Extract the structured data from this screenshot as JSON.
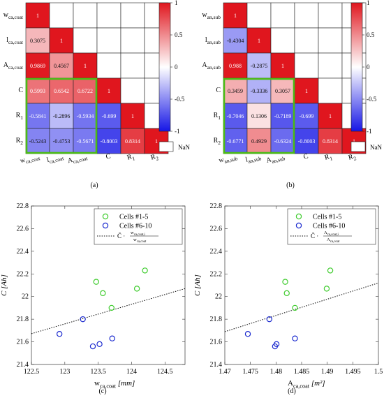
{
  "panel_labels": [
    "(a)",
    "(b)",
    "(c)",
    "(d)"
  ],
  "legend_nan": "NaN",
  "chart_data": [
    {
      "type": "heatmap",
      "panel": "(a)",
      "row_labels": [
        {
          "main": "w",
          "sub": "ca,coat"
        },
        {
          "main": "l",
          "sub": "ca,coat"
        },
        {
          "main": "A",
          "sub": "ca,coat"
        },
        {
          "main": "C",
          "sub": ""
        },
        {
          "main": "R",
          "sub": "1"
        },
        {
          "main": "R",
          "sub": "2"
        }
      ],
      "col_labels": [
        {
          "main": "w",
          "sub": "ca,coat"
        },
        {
          "main": "l",
          "sub": "ca,coat"
        },
        {
          "main": "A",
          "sub": "ca,coat"
        },
        {
          "main": "C",
          "sub": ""
        },
        {
          "main": "R",
          "sub": "1"
        },
        {
          "main": "R",
          "sub": "2"
        }
      ],
      "values": [
        [
          1,
          null,
          null,
          null,
          null,
          null
        ],
        [
          0.3075,
          1,
          null,
          null,
          null,
          null
        ],
        [
          0.9869,
          0.4567,
          1,
          null,
          null,
          null
        ],
        [
          0.5993,
          0.6542,
          0.6722,
          1,
          null,
          null
        ],
        [
          -0.5841,
          -0.2896,
          -0.5934,
          -0.699,
          1,
          null
        ],
        [
          -0.5243,
          -0.4753,
          -0.5671,
          -0.8003,
          0.8314,
          1
        ]
      ],
      "labels": [
        [
          "1",
          "",
          "",
          "",
          "",
          ""
        ],
        [
          "0.3075",
          "1",
          "",
          "",
          "",
          ""
        ],
        [
          "0.9869",
          "0.4567",
          "1",
          "",
          "",
          ""
        ],
        [
          "0.5993",
          "0.6542",
          "0.6722",
          "1",
          "",
          ""
        ],
        [
          "-0.5841",
          "-0.2896",
          "-0.5934",
          "-0.699",
          "1",
          ""
        ],
        [
          "-0.5243",
          "-0.4753",
          "-0.5671",
          "-0.8003",
          "0.8314",
          "1"
        ]
      ],
      "colorbar": {
        "range": [
          -1,
          1
        ],
        "ticks": [
          "1",
          "0.5",
          "0",
          "-0.5",
          "-1"
        ]
      },
      "highlight": {
        "rows": [
          3,
          5
        ],
        "cols": [
          0,
          2
        ],
        "color": "#4CBB17"
      },
      "colors": {
        "positive": "#E0161E",
        "negative": "#1515E6",
        "zero": "#FFFFFF"
      }
    },
    {
      "type": "heatmap",
      "panel": "(b)",
      "row_labels": [
        {
          "main": "w",
          "sub": "an,sub"
        },
        {
          "main": "l",
          "sub": "an,sub"
        },
        {
          "main": "A",
          "sub": "an,sub"
        },
        {
          "main": "C",
          "sub": ""
        },
        {
          "main": "R",
          "sub": "1"
        },
        {
          "main": "R",
          "sub": "2"
        }
      ],
      "col_labels": [
        {
          "main": "w",
          "sub": "an,sub"
        },
        {
          "main": "l",
          "sub": "an,sub"
        },
        {
          "main": "A",
          "sub": "an,sub"
        },
        {
          "main": "C",
          "sub": ""
        },
        {
          "main": "R",
          "sub": "1"
        },
        {
          "main": "R",
          "sub": "2"
        }
      ],
      "values": [
        [
          1,
          null,
          null,
          null,
          null,
          null
        ],
        [
          -0.4304,
          1,
          null,
          null,
          null,
          null
        ],
        [
          0.988,
          -0.2875,
          1,
          null,
          null,
          null
        ],
        [
          0.3459,
          -0.3336,
          0.3057,
          1,
          null,
          null
        ],
        [
          -0.7046,
          0.1306,
          -0.7189,
          -0.699,
          1,
          null
        ],
        [
          -0.6771,
          0.4929,
          -0.6324,
          -0.8003,
          0.8314,
          1
        ]
      ],
      "labels": [
        [
          "1",
          "",
          "",
          "",
          "",
          ""
        ],
        [
          "-0.4304",
          "1",
          "",
          "",
          "",
          ""
        ],
        [
          "0.988",
          "-0.2875",
          "1",
          "",
          "",
          ""
        ],
        [
          "0.3459",
          "-0.3336",
          "0.3057",
          "1",
          "",
          ""
        ],
        [
          "-0.7046",
          "0.1306",
          "-0.7189",
          "-0.699",
          "1",
          ""
        ],
        [
          "-0.6771",
          "0.4929",
          "-0.6324",
          "-0.8003",
          "0.8314",
          "1"
        ]
      ],
      "colorbar": {
        "range": [
          -1,
          1
        ],
        "ticks": [
          "1",
          "0.5",
          "0",
          "-0.5",
          "-1"
        ]
      },
      "highlight": {
        "rows": [
          3,
          5
        ],
        "cols": [
          0,
          2
        ],
        "color": "#4CBB17"
      },
      "colors": {
        "positive": "#E0161E",
        "negative": "#1515E6",
        "zero": "#FFFFFF"
      }
    },
    {
      "type": "scatter",
      "panel": "(c)",
      "xlabel": {
        "main": "w",
        "sub": "ca,coat",
        "unit": " [mm]"
      },
      "ylabel": "C [Ah]",
      "xlim": [
        122.5,
        124.8
      ],
      "ylim": [
        21.4,
        22.8
      ],
      "xticks": [
        "122.5",
        "123",
        "123.5",
        "124",
        "124.5"
      ],
      "yticks": [
        "21.4",
        "21.6",
        "21.8",
        "22",
        "22.2",
        "22.4",
        "22.6",
        "22.8"
      ],
      "grid": false,
      "legend": {
        "placement": "top-right",
        "entries": [
          "Cells #1-5",
          "Cells #6-10"
        ],
        "fit_label": {
          "prefix": "C̄ · ",
          "num": "w",
          "num_sub": "ca,coat,i",
          "den": "w",
          "den_sub": "ca,coat"
        }
      },
      "series": [
        {
          "name": "Cells #1-5",
          "color": "#3FCC2E",
          "x": [
            123.47,
            123.57,
            123.7,
            124.08,
            124.2
          ],
          "y": [
            22.13,
            22.03,
            21.9,
            22.07,
            22.23
          ]
        },
        {
          "name": "Cells #6-10",
          "color": "#1B2ACF",
          "x": [
            122.92,
            123.27,
            123.42,
            123.52,
            123.71
          ],
          "y": [
            21.67,
            21.8,
            21.56,
            21.58,
            21.63
          ]
        }
      ],
      "fit_line": {
        "x": [
          122.5,
          124.8
        ],
        "y": [
          21.672,
          22.07
        ],
        "style": "dotted",
        "color": "#000000"
      }
    },
    {
      "type": "scatter",
      "panel": "(d)",
      "xlabel": {
        "main": "A",
        "sub": "ca,coat",
        "unit": " [m²]"
      },
      "ylabel": "C [Ah]",
      "xlim": [
        1.47,
        1.5
      ],
      "ylim": [
        21.4,
        22.8
      ],
      "xticks": [
        "1.47",
        "1.475",
        "1.48",
        "1.485",
        "1.49",
        "1.495",
        "1.5"
      ],
      "yticks": [
        "21.4",
        "21.6",
        "21.8",
        "22",
        "22.2",
        "22.4",
        "22.6",
        "22.8"
      ],
      "grid": false,
      "legend": {
        "placement": "top-right",
        "entries": [
          "Cells #1-5",
          "Cells #6-10"
        ],
        "fit_label": {
          "prefix": "C̄ · ",
          "num": "A",
          "num_sub": "ca,coat,i",
          "den": "A",
          "den_sub": "ca,coat"
        }
      },
      "series": [
        {
          "name": "Cells #1-5",
          "color": "#3FCC2E",
          "x": [
            1.4818,
            1.4821,
            1.4837,
            1.4899,
            1.4906
          ],
          "y": [
            22.13,
            22.03,
            21.9,
            22.07,
            22.23
          ]
        },
        {
          "name": "Cells #6-10",
          "color": "#1B2ACF",
          "x": [
            1.4745,
            1.4787,
            1.4798,
            1.4801,
            1.4837
          ],
          "y": [
            21.67,
            21.8,
            21.56,
            21.58,
            21.63
          ]
        }
      ],
      "fit_line": {
        "x": [
          1.47,
          1.5
        ],
        "y": [
          21.69,
          22.12
        ],
        "style": "dotted",
        "color": "#000000"
      }
    }
  ]
}
